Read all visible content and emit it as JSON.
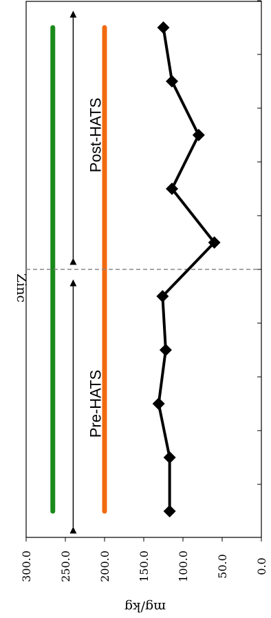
{
  "chart_data": {
    "type": "line",
    "orientation": "rotated 90 degrees clockwise",
    "title": "Zinc",
    "xlabel": "",
    "ylabel": "mg/kg",
    "ylim": [
      0,
      300
    ],
    "yticks": [
      "0.0",
      "50.0",
      "100.0",
      "150.0",
      "200.0",
      "250.0",
      "300.0"
    ],
    "x": [
      1,
      2,
      3,
      4,
      5,
      6,
      7,
      8,
      9,
      10
    ],
    "grid": false,
    "series": [
      {
        "values": [
          117,
          117,
          131,
          122,
          126,
          60,
          114,
          80,
          114,
          125
        ],
        "color": "#000000",
        "marker": "diamond"
      }
    ],
    "reference_lines": [
      {
        "value": 266,
        "color": "#1a8a1a"
      },
      {
        "value": 200,
        "color": "#f26a10"
      }
    ],
    "divider_after_x": 5,
    "annotations": [
      {
        "text": "Pre-HATS",
        "x_range": [
          0.5,
          5.5
        ],
        "y": 240
      },
      {
        "text": "Post-HATS",
        "x_range": [
          5.5,
          10.5
        ],
        "y": 240
      }
    ]
  }
}
